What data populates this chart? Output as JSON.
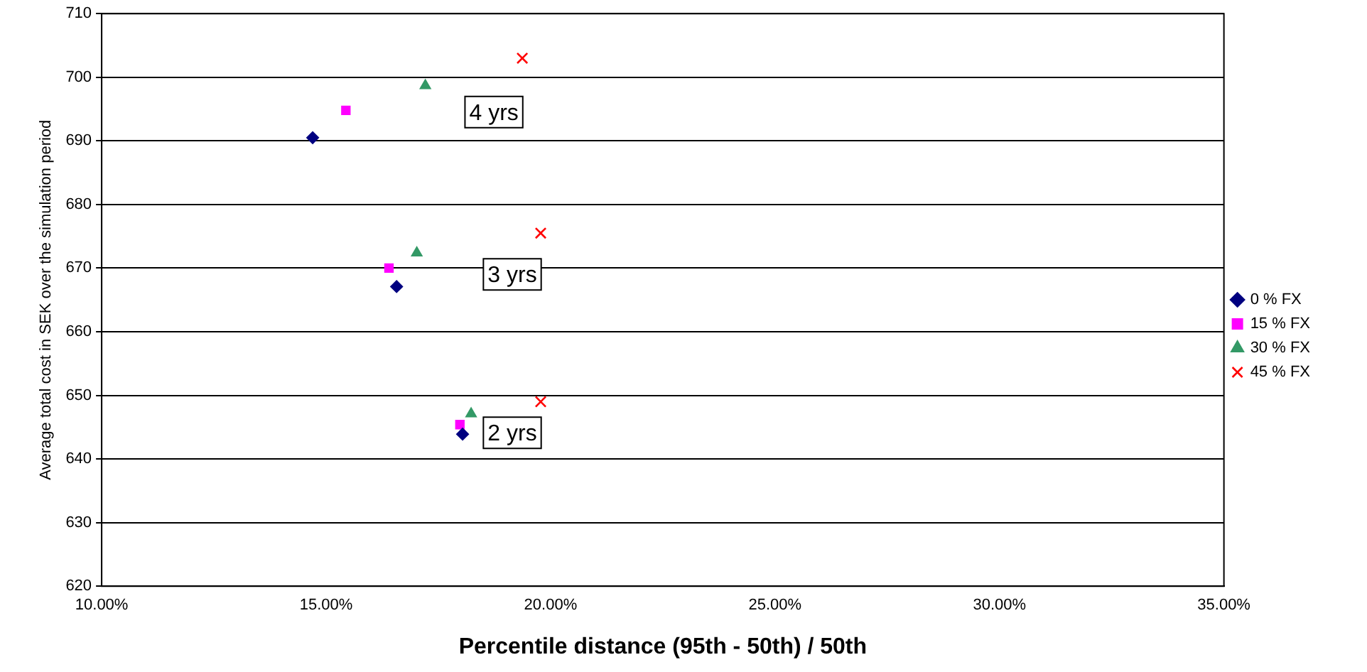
{
  "chart_data": {
    "type": "scatter",
    "xlabel": "Percentile distance (95th - 50th) / 50th",
    "ylabel": "Average total cost in SEK over the simulation period",
    "xlim": [
      10,
      35
    ],
    "ylim": [
      620,
      710
    ],
    "xticks": [
      {
        "value": 10,
        "label": "10.00%"
      },
      {
        "value": 15,
        "label": "15.00%"
      },
      {
        "value": 20,
        "label": "20.00%"
      },
      {
        "value": 25,
        "label": "25.00%"
      },
      {
        "value": 30,
        "label": "30.00%"
      },
      {
        "value": 35,
        "label": "35.00%"
      }
    ],
    "yticks": [
      620,
      630,
      640,
      650,
      660,
      670,
      680,
      690,
      700,
      710
    ],
    "grid": "y",
    "legend": "right",
    "series": [
      {
        "name": "0 % FX",
        "color": "#000080",
        "marker": "diamond",
        "x": [
          14.7,
          16.57,
          18.04
        ],
        "values": [
          690.5,
          667.1,
          643.9
        ]
      },
      {
        "name": "15 % FX",
        "color": "#ff00ff",
        "marker": "square",
        "x": [
          15.44,
          16.4,
          17.98
        ],
        "values": [
          694.8,
          670,
          645.4
        ]
      },
      {
        "name": "30 % FX",
        "color": "#339966",
        "marker": "triangle",
        "x": [
          17.21,
          17.02,
          18.23
        ],
        "values": [
          698.7,
          672.4,
          647.1
        ]
      },
      {
        "name": "45 % FX",
        "color": "#ff0000",
        "marker": "cross",
        "x": [
          19.37,
          19.78,
          19.78
        ],
        "values": [
          703,
          675.5,
          649
        ]
      }
    ],
    "annotations": [
      "4 yrs",
      "3 yrs",
      "2 yrs"
    ]
  }
}
